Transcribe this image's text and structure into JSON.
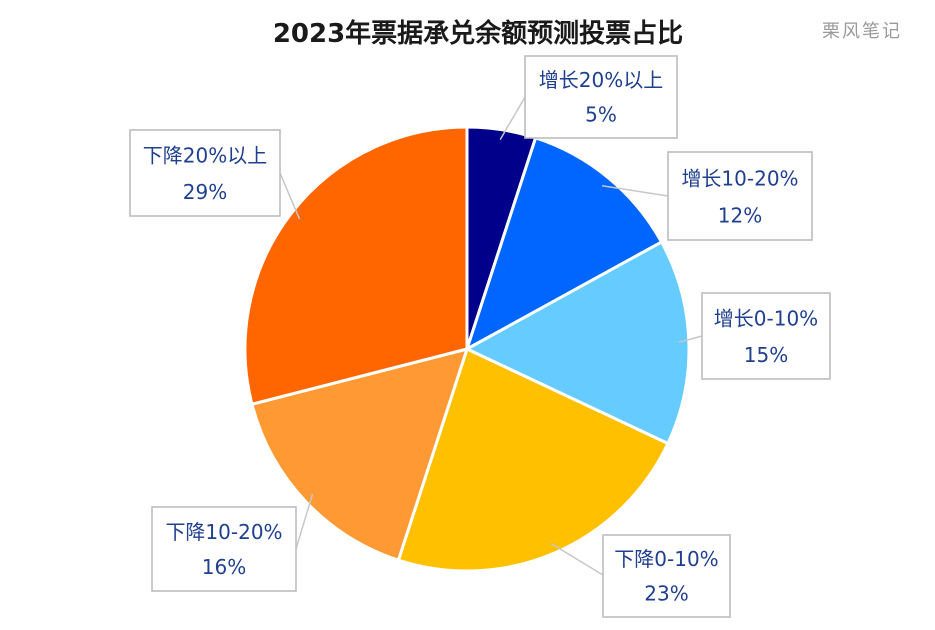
{
  "chart_data": {
    "type": "pie",
    "title": "2023年票据承兑余额预测投票占比",
    "watermark": "栗风笔记",
    "start": "12 o'clock",
    "direction": "clockwise",
    "slices": [
      {
        "label": "增长20%以上",
        "value": 5,
        "value_text": "5%",
        "color": "#00008b"
      },
      {
        "label": "增长10-20%",
        "value": 12,
        "value_text": "12%",
        "color": "#0066ff"
      },
      {
        "label": "增长0-10%",
        "value": 15,
        "value_text": "15%",
        "color": "#66ccff"
      },
      {
        "label": "下降0-10%",
        "value": 23,
        "value_text": "23%",
        "color": "#ffc000"
      },
      {
        "label": "下降10-20%",
        "value": 16,
        "value_text": "16%",
        "color": "#ff9933"
      },
      {
        "label": "下降20%以上",
        "value": 29,
        "value_text": "29%",
        "color": "#ff6600"
      }
    ]
  }
}
